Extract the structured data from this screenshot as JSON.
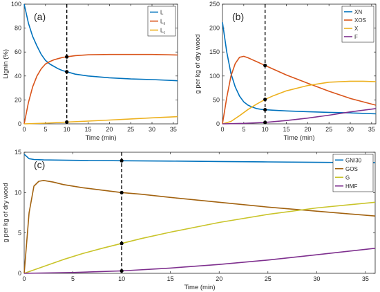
{
  "chart_data": [
    {
      "panel": "(a)",
      "type": "line",
      "title": "",
      "xlabel": "Time (min)",
      "ylabel": "Lignin (%)",
      "xlim": [
        0,
        36
      ],
      "ylim": [
        0,
        100
      ],
      "xticks": [
        0,
        5,
        10,
        15,
        20,
        25,
        30,
        35
      ],
      "yticks": [
        0,
        20,
        40,
        60,
        80,
        100
      ],
      "grid": false,
      "legend": "top-right",
      "marker_time": 10,
      "series": [
        {
          "name": "L",
          "sub": "",
          "color": "#0072BD",
          "x": [
            0,
            1,
            2,
            3,
            4,
            5,
            6,
            7,
            8,
            9,
            10,
            12,
            15,
            20,
            25,
            30,
            36
          ],
          "y": [
            100,
            84,
            73,
            65,
            58,
            53,
            50,
            48,
            46,
            44.5,
            43.5,
            41.5,
            40,
            38.5,
            37.5,
            37,
            36
          ]
        },
        {
          "name": "L",
          "sub": "s",
          "color": "#D95319",
          "x": [
            0,
            1,
            2,
            3,
            4,
            5,
            6,
            7,
            8,
            9,
            10,
            12,
            15,
            20,
            25,
            30,
            36
          ],
          "y": [
            0,
            18,
            31,
            40,
            46,
            50,
            52,
            53.5,
            54.5,
            55.5,
            56,
            57,
            57.7,
            58,
            58,
            58,
            57.5
          ]
        },
        {
          "name": "L",
          "sub": "c",
          "color": "#EDB120",
          "x": [
            0,
            5,
            10,
            15,
            20,
            25,
            30,
            36
          ],
          "y": [
            0,
            0.6,
            1.5,
            2.3,
            3.2,
            4.1,
            5,
            6
          ]
        }
      ],
      "marker_values": [
        43.5,
        56,
        1.5
      ]
    },
    {
      "panel": "(b)",
      "type": "line",
      "title": "",
      "xlabel": "Time (min)",
      "ylabel": "g per kg of dry wood",
      "xlim": [
        0,
        36
      ],
      "ylim": [
        0,
        250
      ],
      "xticks": [
        0,
        5,
        10,
        15,
        20,
        25,
        30,
        35
      ],
      "yticks": [
        0,
        50,
        100,
        150,
        200,
        250
      ],
      "grid": false,
      "legend": "top-right",
      "marker_time": 10,
      "series": [
        {
          "name": "XN",
          "sub": "",
          "color": "#0072BD",
          "x": [
            0,
            1,
            2,
            3,
            4,
            5,
            6,
            7,
            8,
            9,
            10,
            12,
            15,
            20,
            25,
            30,
            36
          ],
          "y": [
            212,
            150,
            105,
            77,
            58,
            46,
            39,
            35,
            32,
            30.5,
            29.5,
            28.5,
            27,
            25.5,
            24,
            23,
            21
          ]
        },
        {
          "name": "XOS",
          "sub": "",
          "color": "#D95319",
          "x": [
            0,
            1,
            2,
            3,
            4,
            5,
            6,
            7,
            8,
            9,
            10,
            12,
            15,
            20,
            25,
            30,
            36
          ],
          "y": [
            0,
            55,
            100,
            126,
            139,
            141,
            138,
            134,
            130,
            126,
            122,
            114,
            102,
            85,
            68,
            53,
            39
          ]
        },
        {
          "name": "X",
          "sub": "",
          "color": "#EDB120",
          "x": [
            0,
            2,
            4,
            6,
            8,
            10,
            12,
            15,
            20,
            25,
            30,
            33,
            36
          ],
          "y": [
            0,
            5,
            17,
            30,
            41,
            51,
            59,
            69,
            80,
            87,
            89,
            89,
            88
          ]
        },
        {
          "name": "F",
          "sub": "",
          "color": "#7E2F8E",
          "x": [
            0,
            5,
            10,
            15,
            20,
            25,
            30,
            36
          ],
          "y": [
            0,
            1,
            3,
            7,
            12,
            18,
            25,
            32
          ]
        }
      ],
      "marker_values": [
        29.5,
        122,
        51,
        3
      ]
    },
    {
      "panel": "(c)",
      "type": "line",
      "title": "",
      "xlabel": "Time (min)",
      "ylabel": "g per kg of dry wood",
      "xlim": [
        0,
        36
      ],
      "ylim": [
        0,
        15
      ],
      "xticks": [
        0,
        5,
        10,
        15,
        20,
        25,
        30,
        35
      ],
      "yticks": [
        0,
        5,
        10,
        15
      ],
      "grid": false,
      "legend": "top-right",
      "marker_time": 10,
      "series": [
        {
          "name": "GN/30",
          "sub": "",
          "color": "#0072BD",
          "x": [
            0,
            0.5,
            1,
            2,
            5,
            10,
            15,
            20,
            25,
            30,
            36
          ],
          "y": [
            14.75,
            14.2,
            14.1,
            14.05,
            14.0,
            13.95,
            13.9,
            13.85,
            13.8,
            13.75,
            13.7
          ]
        },
        {
          "name": "GOS",
          "sub": "",
          "color": "#A2620F",
          "x": [
            0,
            0.5,
            1,
            1.5,
            2,
            3,
            4,
            6,
            8,
            10,
            12,
            15,
            20,
            25,
            30,
            36
          ],
          "y": [
            0,
            7.5,
            10.8,
            11.4,
            11.5,
            11.3,
            11.0,
            10.6,
            10.3,
            10.0,
            9.8,
            9.4,
            8.8,
            8.2,
            7.7,
            7.1
          ]
        },
        {
          "name": "G",
          "sub": "",
          "color": "#C9C42A",
          "x": [
            0,
            2,
            4,
            6,
            8,
            10,
            12,
            15,
            20,
            25,
            30,
            36
          ],
          "y": [
            0,
            0.85,
            1.7,
            2.45,
            3.1,
            3.7,
            4.3,
            5.1,
            6.3,
            7.3,
            8.1,
            8.8
          ]
        },
        {
          "name": "HMF",
          "sub": "",
          "color": "#7E2F8E",
          "x": [
            0,
            5,
            10,
            15,
            20,
            25,
            30,
            36
          ],
          "y": [
            0,
            0.1,
            0.3,
            0.65,
            1.1,
            1.65,
            2.3,
            3.1
          ]
        }
      ],
      "marker_values": [
        13.95,
        10.0,
        3.7,
        0.3
      ]
    }
  ]
}
